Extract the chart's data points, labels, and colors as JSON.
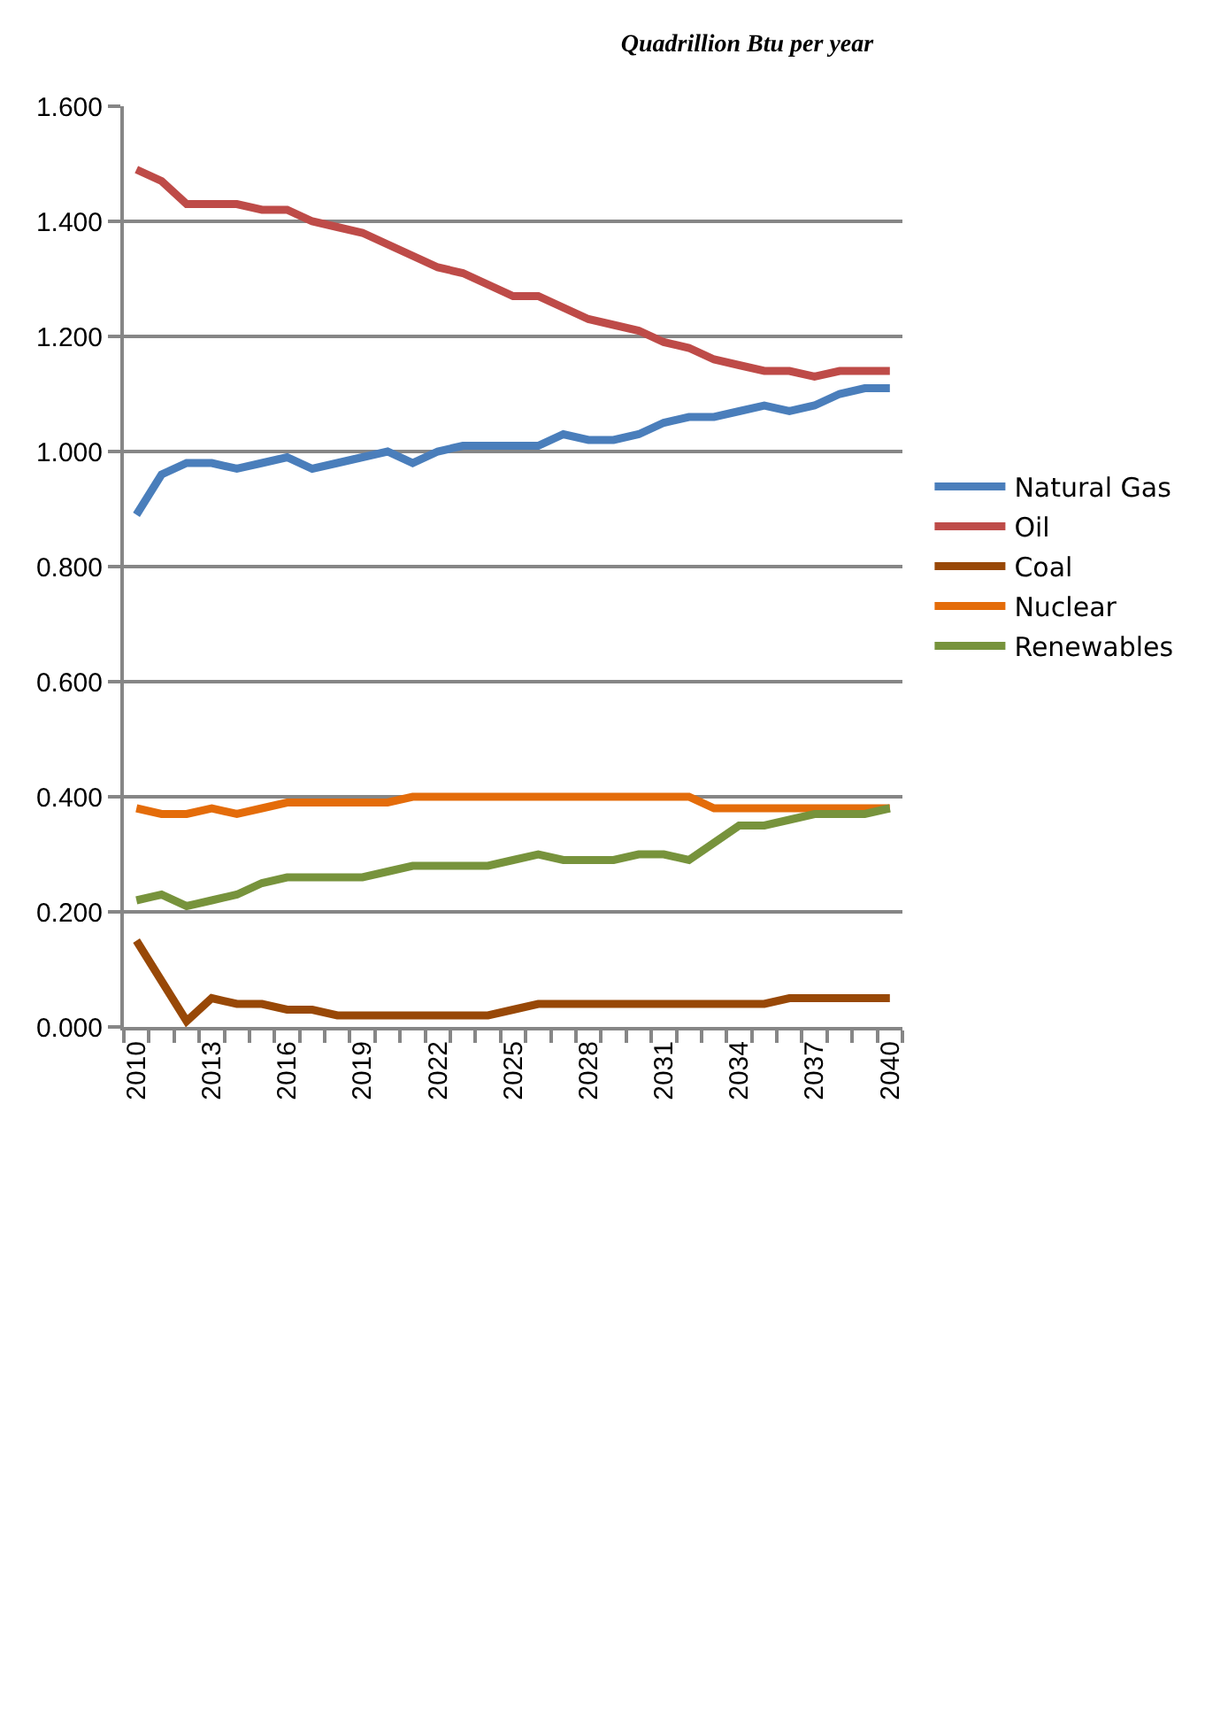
{
  "chart_data": {
    "type": "line",
    "title": "Quadrillion Btu per year",
    "categories": [
      "2010",
      null,
      null,
      "2013",
      null,
      null,
      "2016",
      null,
      null,
      "2019",
      null,
      null,
      "2022",
      null,
      null,
      "2025",
      null,
      null,
      "2028",
      null,
      null,
      "2031",
      null,
      null,
      "2034",
      null,
      null,
      "2037",
      null,
      null,
      "2040"
    ],
    "series": [
      {
        "name": "Natural Gas",
        "color": "#4a7ebb",
        "values": [
          0.89,
          0.96,
          0.98,
          0.98,
          0.97,
          0.98,
          0.99,
          0.97,
          0.98,
          0.99,
          1.0,
          0.98,
          1.0,
          1.01,
          1.01,
          1.01,
          1.01,
          1.03,
          1.02,
          1.02,
          1.03,
          1.05,
          1.06,
          1.06,
          1.07,
          1.08,
          1.07,
          1.08,
          1.1,
          1.11,
          1.11
        ]
      },
      {
        "name": "Oil",
        "color": "#be4b48",
        "values": [
          1.49,
          1.47,
          1.43,
          1.43,
          1.43,
          1.42,
          1.42,
          1.4,
          1.39,
          1.38,
          1.36,
          1.34,
          1.32,
          1.31,
          1.29,
          1.27,
          1.27,
          1.25,
          1.23,
          1.22,
          1.21,
          1.19,
          1.18,
          1.16,
          1.15,
          1.14,
          1.14,
          1.13,
          1.14,
          1.14,
          1.14
        ]
      },
      {
        "name": "Coal",
        "color": "#984807",
        "values": [
          0.15,
          0.08,
          0.01,
          0.05,
          0.04,
          0.04,
          0.03,
          0.03,
          0.02,
          0.02,
          0.02,
          0.02,
          0.02,
          0.02,
          0.02,
          0.03,
          0.04,
          0.04,
          0.04,
          0.04,
          0.04,
          0.04,
          0.04,
          0.04,
          0.04,
          0.04,
          0.05,
          0.05,
          0.05,
          0.05,
          0.05
        ]
      },
      {
        "name": "Nuclear",
        "color": "#e46c0a",
        "values": [
          0.38,
          0.37,
          0.37,
          0.38,
          0.37,
          0.38,
          0.39,
          0.39,
          0.39,
          0.39,
          0.39,
          0.4,
          0.4,
          0.4,
          0.4,
          0.4,
          0.4,
          0.4,
          0.4,
          0.4,
          0.4,
          0.4,
          0.4,
          0.38,
          0.38,
          0.38,
          0.38,
          0.38,
          0.38,
          0.38,
          0.38
        ]
      },
      {
        "name": "Renewables",
        "color": "#77933c",
        "values": [
          0.22,
          0.23,
          0.21,
          0.22,
          0.23,
          0.25,
          0.26,
          0.26,
          0.26,
          0.26,
          0.27,
          0.28,
          0.28,
          0.28,
          0.28,
          0.29,
          0.3,
          0.29,
          0.29,
          0.29,
          0.3,
          0.3,
          0.29,
          0.32,
          0.35,
          0.35,
          0.36,
          0.37,
          0.37,
          0.37,
          0.38
        ]
      }
    ],
    "ylim": [
      0,
      1.6
    ],
    "yticks": [
      {
        "value": 0,
        "label": "0.000"
      },
      {
        "value": 0.2,
        "label": "0.200"
      },
      {
        "value": 0.4,
        "label": "0.400"
      },
      {
        "value": 0.6,
        "label": "0.600"
      },
      {
        "value": 0.8,
        "label": "0.800"
      },
      {
        "value": 1.0,
        "label": "1.000"
      },
      {
        "value": 1.2,
        "label": "1.200"
      },
      {
        "value": 1.4,
        "label": "1.400"
      },
      {
        "value": 1.6,
        "label": "1.600"
      }
    ],
    "grid": "y",
    "legend": "right"
  }
}
